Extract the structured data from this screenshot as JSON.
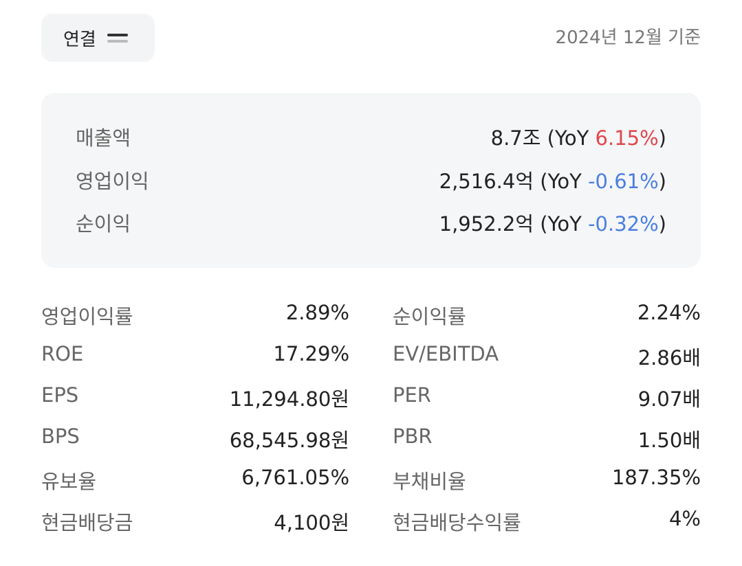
{
  "header": {
    "toggle": "연결",
    "basis": "2024년 12월 기준"
  },
  "summary": [
    {
      "label": "매출액",
      "value": "8.7조",
      "yoy": "(YoY",
      "change": "6.15%",
      "close": ")",
      "change_color": "#e0474c"
    },
    {
      "label": "영업이익",
      "value": "2,516.4억",
      "yoy": "(YoY",
      "change": "-0.61%",
      "close": ")",
      "change_color": "#4a7fe0"
    },
    {
      "label": "순이익",
      "value": "1,952.2억",
      "yoy": "(YoY",
      "change": "-0.32%",
      "close": ")",
      "change_color": "#4a7fe0"
    }
  ],
  "metrics": {
    "left": [
      {
        "label": "영업이익률",
        "value": "2.89%"
      },
      {
        "label": "ROE",
        "value": "17.29%"
      },
      {
        "label": "EPS",
        "value": "11,294.80원"
      },
      {
        "label": "BPS",
        "value": "68,545.98원"
      },
      {
        "label": "유보율",
        "value": "6,761.05%"
      },
      {
        "label": "현금배당금",
        "value": "4,100원"
      }
    ],
    "right": [
      {
        "label": "순이익률",
        "value": "2.24%"
      },
      {
        "label": "EV/EBITDA",
        "value": "2.86배"
      },
      {
        "label": "PER",
        "value": "9.07배"
      },
      {
        "label": "PBR",
        "value": "1.50배"
      },
      {
        "label": "부채비율",
        "value": "187.35%"
      },
      {
        "label": "현금배당수익률",
        "value": "4%"
      }
    ]
  }
}
